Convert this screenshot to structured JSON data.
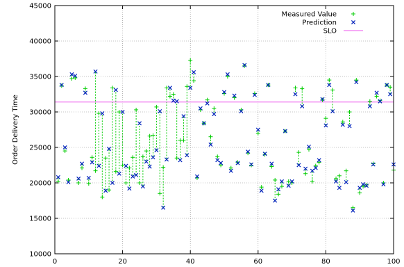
{
  "chart_data": {
    "type": "scatter",
    "title": "",
    "xlabel": "",
    "ylabel": "Order Delivery Time",
    "xlim": [
      0,
      100
    ],
    "ylim": [
      10000,
      45000
    ],
    "xticks": [
      0,
      20,
      40,
      60,
      80,
      100
    ],
    "yticks": [
      10000,
      15000,
      20000,
      25000,
      30000,
      35000,
      40000,
      45000
    ],
    "grid": true,
    "grid_style": "dotted",
    "legend_position": "top-right",
    "series": [
      {
        "name": "Measured Value",
        "marker": "+",
        "color": "#00cc00",
        "x": [
          1,
          2,
          3,
          4,
          5,
          6,
          7,
          8,
          9,
          10,
          11,
          12,
          13,
          14,
          15,
          16,
          17,
          18,
          19,
          20,
          21,
          22,
          23,
          24,
          25,
          26,
          27,
          28,
          29,
          30,
          31,
          32,
          33,
          34,
          35,
          36,
          37,
          38,
          39,
          40,
          41,
          42,
          43,
          44,
          45,
          46,
          47,
          48,
          49,
          50,
          51,
          52,
          53,
          54,
          55,
          56,
          57,
          58,
          59,
          60,
          61,
          62,
          63,
          64,
          65,
          66,
          67,
          68,
          69,
          70,
          71,
          72,
          73,
          74,
          75,
          76,
          77,
          78,
          79,
          80,
          81,
          82,
          83,
          84,
          85,
          86,
          87,
          88,
          89,
          90,
          91,
          92,
          93,
          94,
          95,
          96,
          97,
          98,
          99,
          100
        ],
        "y": [
          20200,
          33700,
          24500,
          20400,
          34700,
          34800,
          20000,
          22100,
          33300,
          19900,
          23600,
          21700,
          29800,
          18000,
          23500,
          19000,
          33400,
          21600,
          30000,
          22500,
          20000,
          22100,
          23600,
          30300,
          20000,
          23700,
          24500,
          26600,
          26700,
          30700,
          18500,
          22200,
          33400,
          32200,
          32500,
          23500,
          26000,
          26000,
          33600,
          37300,
          34400,
          20700,
          30300,
          28400,
          31700,
          26500,
          30500,
          23700,
          22500,
          32600,
          35000,
          22100,
          32000,
          22900,
          30300,
          36500,
          24200,
          22500,
          32600,
          27000,
          19400,
          24000,
          33800,
          22300,
          20400,
          18400,
          19500,
          27300,
          20200,
          20000,
          33400,
          24300,
          33300,
          21300,
          24700,
          20200,
          22400,
          22900,
          31700,
          29100,
          34500,
          33100,
          20600,
          21000,
          28600,
          21700,
          30000,
          16500,
          34500,
          18600,
          19500,
          19700,
          31500,
          22700,
          32200,
          31600,
          20000,
          33800,
          33500,
          21800
        ]
      },
      {
        "name": "Prediction",
        "marker": "x",
        "color": "#0022bb",
        "x": [
          1,
          2,
          3,
          4,
          5,
          6,
          7,
          8,
          9,
          10,
          11,
          12,
          13,
          14,
          15,
          16,
          17,
          18,
          19,
          20,
          21,
          22,
          23,
          24,
          25,
          26,
          27,
          28,
          29,
          30,
          31,
          32,
          33,
          34,
          35,
          36,
          37,
          38,
          39,
          40,
          41,
          42,
          43,
          44,
          45,
          46,
          47,
          48,
          49,
          50,
          51,
          52,
          53,
          54,
          55,
          56,
          57,
          58,
          59,
          60,
          61,
          62,
          63,
          64,
          65,
          66,
          67,
          68,
          69,
          70,
          71,
          72,
          73,
          74,
          75,
          76,
          77,
          78,
          79,
          80,
          81,
          82,
          83,
          84,
          85,
          86,
          87,
          88,
          89,
          90,
          91,
          92,
          93,
          94,
          95,
          96,
          97,
          98,
          99,
          100
        ],
        "y": [
          20800,
          33800,
          25000,
          20100,
          35300,
          35100,
          20600,
          22700,
          32700,
          20700,
          22900,
          35700,
          22400,
          29800,
          18900,
          24800,
          20000,
          33100,
          21300,
          30000,
          22400,
          19200,
          20900,
          21100,
          28400,
          19500,
          23000,
          22300,
          23600,
          24600,
          30100,
          16500,
          23300,
          33400,
          31600,
          31500,
          23200,
          29400,
          23900,
          33400,
          35600,
          20900,
          30500,
          28400,
          31200,
          25400,
          29700,
          23200,
          22800,
          32800,
          35300,
          21700,
          32300,
          22800,
          30100,
          36600,
          24400,
          22600,
          32400,
          27500,
          18900,
          24100,
          33800,
          22700,
          17500,
          19100,
          20200,
          27300,
          19600,
          20200,
          32500,
          22500,
          30800,
          22000,
          25100,
          21700,
          22100,
          23200,
          31800,
          28100,
          33800,
          30100,
          20200,
          19300,
          28200,
          20100,
          28000,
          16100,
          34200,
          19300,
          19800,
          19600,
          30800,
          22600,
          32700,
          31500,
          19800,
          33800,
          32500,
          22600
        ]
      },
      {
        "name": "SLO",
        "marker": "line",
        "color": "#ee55ee",
        "y": 31400
      }
    ]
  }
}
